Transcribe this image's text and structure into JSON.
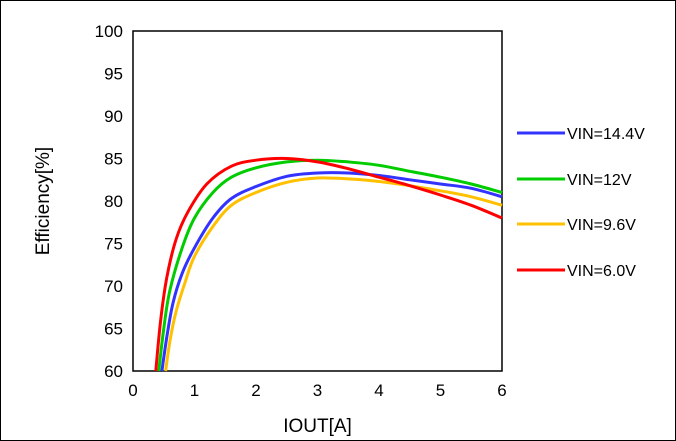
{
  "chart_data": {
    "type": "line",
    "title": "",
    "xlabel": "IOUT[A]",
    "ylabel": "Efficiency[%]",
    "xlim": [
      0,
      6
    ],
    "ylim": [
      60,
      100
    ],
    "xticks": [
      "0",
      "1",
      "2",
      "3",
      "4",
      "5",
      "6"
    ],
    "yticks": [
      "60",
      "65",
      "70",
      "75",
      "80",
      "85",
      "90",
      "95",
      "100"
    ],
    "grid": false,
    "legend_position": "right",
    "series": [
      {
        "name": "VIN=14.4V",
        "color": "#3333ff",
        "points": [
          [
            0.47,
            60
          ],
          [
            0.55,
            64
          ],
          [
            0.65,
            68
          ],
          [
            0.8,
            71.5
          ],
          [
            1.0,
            74.5
          ],
          [
            1.3,
            78
          ],
          [
            1.6,
            80.3
          ],
          [
            2.0,
            81.7
          ],
          [
            2.5,
            82.9
          ],
          [
            3.0,
            83.3
          ],
          [
            3.5,
            83.3
          ],
          [
            4.0,
            83
          ],
          [
            4.5,
            82.5
          ],
          [
            5.0,
            82
          ],
          [
            5.5,
            81.5
          ],
          [
            6.0,
            80.5
          ]
        ]
      },
      {
        "name": "VIN=12V",
        "color": "#00cc00",
        "points": [
          [
            0.42,
            60
          ],
          [
            0.5,
            65
          ],
          [
            0.6,
            69.5
          ],
          [
            0.8,
            74.5
          ],
          [
            1.0,
            78
          ],
          [
            1.3,
            81
          ],
          [
            1.6,
            82.8
          ],
          [
            2.0,
            83.9
          ],
          [
            2.5,
            84.6
          ],
          [
            3.0,
            84.8
          ],
          [
            3.5,
            84.6
          ],
          [
            4.0,
            84.2
          ],
          [
            4.5,
            83.5
          ],
          [
            5.0,
            82.8
          ],
          [
            5.5,
            82
          ],
          [
            6.0,
            81
          ]
        ]
      },
      {
        "name": "VIN=9.6V",
        "color": "#ffc000",
        "points": [
          [
            0.53,
            60
          ],
          [
            0.6,
            63.5
          ],
          [
            0.7,
            67
          ],
          [
            0.85,
            70.5
          ],
          [
            1.0,
            73.5
          ],
          [
            1.3,
            77
          ],
          [
            1.6,
            79.5
          ],
          [
            2.0,
            81
          ],
          [
            2.5,
            82.2
          ],
          [
            3.0,
            82.7
          ],
          [
            3.5,
            82.6
          ],
          [
            4.0,
            82.3
          ],
          [
            4.5,
            81.8
          ],
          [
            5.0,
            81.2
          ],
          [
            5.5,
            80.5
          ],
          [
            6.0,
            79.5
          ]
        ]
      },
      {
        "name": "VIN=6.0V",
        "color": "#ff0000",
        "points": [
          [
            0.37,
            60
          ],
          [
            0.45,
            66
          ],
          [
            0.55,
            71
          ],
          [
            0.7,
            75.5
          ],
          [
            0.9,
            78.8
          ],
          [
            1.2,
            82
          ],
          [
            1.6,
            84.1
          ],
          [
            2.0,
            84.8
          ],
          [
            2.5,
            85
          ],
          [
            3.0,
            84.6
          ],
          [
            3.5,
            83.8
          ],
          [
            4.0,
            82.8
          ],
          [
            4.5,
            81.8
          ],
          [
            5.0,
            80.7
          ],
          [
            5.5,
            79.5
          ],
          [
            6.0,
            78
          ]
        ]
      }
    ]
  }
}
